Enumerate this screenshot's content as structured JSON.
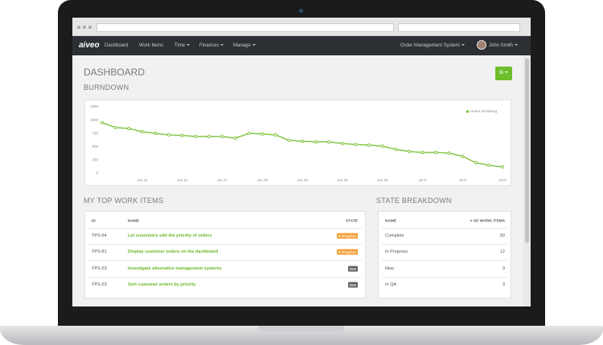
{
  "nav": {
    "brand": "aiveo",
    "items": [
      "Dashboard",
      "Work Items",
      "Time",
      "Finances",
      "Manage"
    ],
    "org": "Order Management System",
    "user": "John Smith"
  },
  "page": {
    "title": "DASHBOARD",
    "button": "G"
  },
  "chart_data": {
    "type": "line",
    "title": "BURNDOWN",
    "categories": [
      null,
      null,
      null,
      "Jun 11",
      null,
      null,
      "Jun 14",
      null,
      null,
      "Jun 17",
      null,
      null,
      "Jun 20",
      null,
      null,
      "Jun 23",
      null,
      null,
      "Jun 26",
      null,
      null,
      "Jun 29",
      null,
      null,
      "Jul 2",
      null,
      null,
      "Jul 5",
      null,
      null,
      "Jul 8"
    ],
    "series": [
      {
        "name": "Hours remaining",
        "color": "#7dc23b",
        "values": [
          950,
          860,
          840,
          780,
          750,
          720,
          710,
          690,
          690,
          690,
          660,
          750,
          740,
          720,
          620,
          600,
          590,
          590,
          560,
          540,
          530,
          510,
          450,
          410,
          390,
          390,
          380,
          320,
          200,
          150,
          120
        ]
      }
    ],
    "ylim": [
      0,
      1250
    ],
    "yticks": [
      0,
      250,
      500,
      750,
      1000,
      1250
    ],
    "grid": false,
    "legend": "top-right"
  },
  "work_items": {
    "heading": "MY TOP WORK ITEMS",
    "columns": [
      "ID",
      "NAME",
      "STATE"
    ],
    "rows": [
      {
        "id": "TPS-64",
        "name": "Let customers edit the priority of orders",
        "state": {
          "text": "In Progress",
          "color": "#f0a23a"
        }
      },
      {
        "id": "TPS-81",
        "name": "Display customer orders on the dashboard",
        "state": {
          "text": "In Progress",
          "color": "#f0a23a"
        }
      },
      {
        "id": "TPS-53",
        "name": "Investigate alternative management systems",
        "state": {
          "text": "New",
          "color": "#666666"
        }
      },
      {
        "id": "TPS-53",
        "name": "Sort customer orders by priority",
        "state": {
          "text": "New",
          "color": "#666666"
        }
      }
    ]
  },
  "state_breakdown": {
    "heading": "STATE BREAKDOWN",
    "columns": [
      "NAME",
      "# OF WORK ITEMS"
    ],
    "rows": [
      [
        "Complete",
        "50"
      ],
      [
        "In Progress",
        "12"
      ],
      [
        "New",
        "9"
      ],
      [
        "In QA",
        "3"
      ]
    ]
  }
}
